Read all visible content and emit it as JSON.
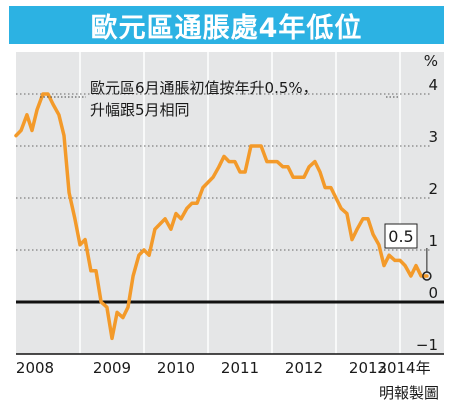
{
  "title": "歐元區通脹處4年低位",
  "credit": "明報製圖",
  "colors": {
    "title_bg": "#2cb2e3",
    "plot_bg": "#e5e6e7",
    "line": "#f39a2a",
    "zero_line": "#111111",
    "grid": "#666666",
    "text": "#1a1a1a"
  },
  "chart_data": {
    "type": "line",
    "title": "歐元區通脹處4年低位",
    "ylabel": "%",
    "ylim": [
      -1,
      4
    ],
    "yticks": [
      "−1",
      "0",
      "1",
      "2",
      "3",
      "4"
    ],
    "ytick_values": [
      -1,
      0,
      1,
      2,
      3,
      4
    ],
    "xticks": [
      "2008",
      "2009",
      "2010",
      "2011",
      "2012",
      "2013",
      "2014年"
    ],
    "x_range": [
      2008.0,
      2014.5
    ],
    "grid": true,
    "annotation": {
      "text": "歐元區6月通脹初值按年升0.5%，\n升幅跟5月相同",
      "value_label": "0.5"
    },
    "series": [
      {
        "x": [
          2008.0,
          2008.08,
          2008.17,
          2008.25,
          2008.33,
          2008.42,
          2008.5,
          2008.58,
          2008.67,
          2008.75,
          2008.83,
          2008.92,
          2009.0,
          2009.08,
          2009.17,
          2009.25,
          2009.33,
          2009.42,
          2009.5,
          2009.58,
          2009.67,
          2009.75,
          2009.83,
          2009.92,
          2010.0,
          2010.08,
          2010.17,
          2010.25,
          2010.33,
          2010.42,
          2010.5,
          2010.58,
          2010.67,
          2010.75,
          2010.83,
          2010.92,
          2011.0,
          2011.08,
          2011.17,
          2011.25,
          2011.33,
          2011.42,
          2011.5,
          2011.58,
          2011.67,
          2011.75,
          2011.83,
          2011.92,
          2012.0,
          2012.08,
          2012.17,
          2012.25,
          2012.33,
          2012.42,
          2012.5,
          2012.58,
          2012.67,
          2012.75,
          2012.83,
          2012.92,
          2013.0,
          2013.08,
          2013.17,
          2013.25,
          2013.33,
          2013.42,
          2013.5,
          2013.58,
          2013.67,
          2013.75,
          2013.83,
          2013.92,
          2014.0,
          2014.08,
          2014.17,
          2014.25,
          2014.33,
          2014.42
        ],
        "values": [
          3.2,
          3.3,
          3.6,
          3.3,
          3.7,
          4.0,
          4.0,
          3.8,
          3.6,
          3.2,
          2.1,
          1.6,
          1.1,
          1.2,
          0.6,
          0.6,
          0.0,
          -0.1,
          -0.7,
          -0.2,
          -0.3,
          -0.1,
          0.5,
          0.9,
          1.0,
          0.9,
          1.4,
          1.5,
          1.6,
          1.4,
          1.7,
          1.6,
          1.8,
          1.9,
          1.9,
          2.2,
          2.3,
          2.4,
          2.6,
          2.8,
          2.7,
          2.7,
          2.5,
          2.5,
          3.0,
          3.0,
          3.0,
          2.7,
          2.7,
          2.7,
          2.6,
          2.6,
          2.4,
          2.4,
          2.4,
          2.6,
          2.7,
          2.5,
          2.2,
          2.2,
          2.0,
          1.8,
          1.7,
          1.2,
          1.4,
          1.6,
          1.6,
          1.3,
          1.1,
          0.7,
          0.9,
          0.8,
          0.8,
          0.7,
          0.5,
          0.7,
          0.5,
          0.5
        ]
      }
    ]
  }
}
